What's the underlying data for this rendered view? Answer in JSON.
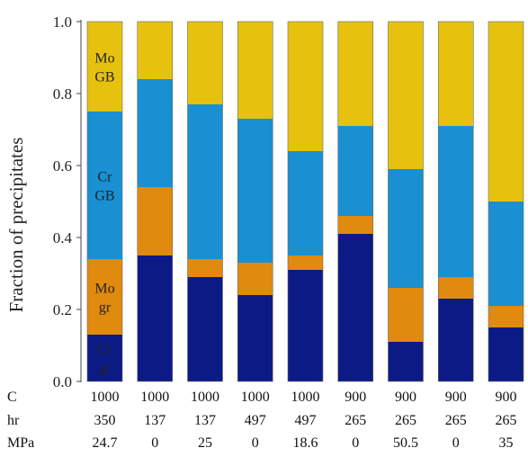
{
  "chart_data": {
    "type": "bar",
    "stacked": true,
    "ylabel": "Fraction of precipitates",
    "xlabel": "",
    "ylim": [
      0,
      1.0
    ],
    "yticks": [
      "0.0",
      "0.2",
      "0.4",
      "0.6",
      "0.8",
      "1.0"
    ],
    "condition_labels": [
      "C",
      "hr",
      "MPa"
    ],
    "categories": [
      {
        "C": "1000",
        "hr": "350",
        "MPa": "24.7"
      },
      {
        "C": "1000",
        "hr": "137",
        "MPa": "0"
      },
      {
        "C": "1000",
        "hr": "137",
        "MPa": "25"
      },
      {
        "C": "1000",
        "hr": "497",
        "MPa": "0"
      },
      {
        "C": "1000",
        "hr": "497",
        "MPa": "18.6"
      },
      {
        "C": "900",
        "hr": "265",
        "MPa": "0"
      },
      {
        "C": "900",
        "hr": "265",
        "MPa": "50.5"
      },
      {
        "C": "900",
        "hr": "265",
        "MPa": "0"
      },
      {
        "C": "900",
        "hr": "265",
        "MPa": "35"
      }
    ],
    "series": [
      {
        "label_lines": [
          "Cr",
          "gr"
        ],
        "color": "#0b1a85",
        "label_color": "#d8dcf4",
        "values": [
          0.13,
          0.35,
          0.29,
          0.24,
          0.31,
          0.41,
          0.11,
          0.23,
          0.15
        ]
      },
      {
        "label_lines": [
          "Mo",
          "gr"
        ],
        "color": "#e08a0e",
        "label_color": "#222222",
        "values": [
          0.21,
          0.19,
          0.05,
          0.09,
          0.04,
          0.05,
          0.15,
          0.06,
          0.06
        ]
      },
      {
        "label_lines": [
          "Cr",
          "GB"
        ],
        "color": "#1a8fd2",
        "label_color": "#222222",
        "values": [
          0.41,
          0.3,
          0.43,
          0.4,
          0.29,
          0.25,
          0.33,
          0.42,
          0.29
        ]
      },
      {
        "label_lines": [
          "Mo",
          "GB"
        ],
        "color": "#e6c20e",
        "label_color": "#222222",
        "values": [
          0.25,
          0.16,
          0.23,
          0.27,
          0.36,
          0.29,
          0.41,
          0.29,
          0.5
        ]
      }
    ]
  }
}
